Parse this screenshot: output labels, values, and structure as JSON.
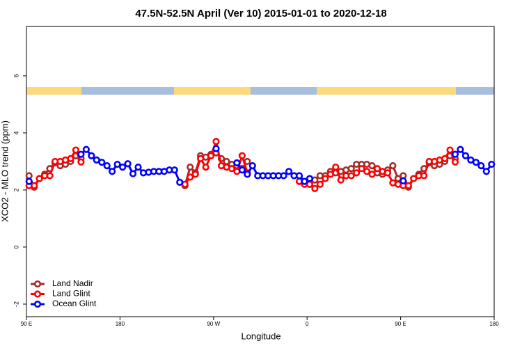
{
  "chart_data": {
    "type": "line",
    "title": "47.5N-52.5N April (Ver 10)   2015-01-01 to 2020-12-18",
    "x_label": "Longitude",
    "y_label": "XCO2 - MLO trend (ppm)",
    "xlim": [
      90,
      540
    ],
    "ylim": [
      -2.44,
      7.73
    ],
    "xticks": [
      {
        "value": 90,
        "label": "90 E"
      },
      {
        "value": 180,
        "label": "180"
      },
      {
        "value": 270,
        "label": "90 W"
      },
      {
        "value": 360,
        "label": "0"
      },
      {
        "value": 450,
        "label": "90 E"
      },
      {
        "value": 540,
        "label": "180"
      }
    ],
    "yticks": [
      -2,
      0,
      2,
      4,
      6
    ],
    "legend": "bottom-left",
    "x": [
      92.5,
      97.5,
      102.5,
      107.5,
      112.5,
      117.5,
      122.5,
      127.5,
      132.5,
      137.5,
      142.5,
      147.5,
      152.5,
      157.5,
      162.5,
      167.5,
      172.5,
      177.5,
      182.5,
      187.5,
      192.5,
      197.5,
      202.5,
      207.5,
      212.5,
      217.5,
      222.5,
      227.5,
      232.5,
      237.5,
      242.5,
      247.5,
      252.5,
      257.5,
      262.5,
      267.5,
      272.5,
      277.5,
      282.5,
      287.5,
      292.5,
      297.5,
      302.5,
      307.5,
      312.5,
      317.5,
      322.5,
      327.5,
      332.5,
      337.5,
      342.5,
      347.5,
      352.5,
      357.5,
      362.5,
      367.5,
      372.5,
      377.5,
      382.5,
      387.5,
      392.5,
      397.5,
      402.5,
      407.5,
      412.5,
      417.5,
      422.5,
      427.5,
      432.5,
      437.5,
      442.5,
      447.5,
      452.5,
      457.5,
      462.5,
      467.5,
      472.5,
      477.5,
      482.5,
      487.5,
      492.5,
      497.5,
      502.5,
      507.5,
      512.5,
      517.5,
      522.5,
      527.5,
      532.5,
      537.5
    ],
    "series": [
      {
        "name": "Land Nadir",
        "color": "#a52a2a",
        "values": [
          2.5,
          2.1,
          2.4,
          2.55,
          2.75,
          2.95,
          2.85,
          2.9,
          3.0,
          3.2,
          3.1,
          null,
          null,
          null,
          null,
          null,
          null,
          null,
          null,
          null,
          null,
          null,
          null,
          null,
          null,
          null,
          null,
          null,
          null,
          null,
          2.15,
          2.8,
          2.6,
          3.2,
          3.15,
          3.25,
          3.3,
          3.1,
          3.0,
          2.9,
          2.85,
          2.75,
          3.0,
          null,
          null,
          null,
          null,
          null,
          null,
          null,
          null,
          null,
          2.3,
          2.25,
          2.2,
          2.35,
          2.5,
          2.5,
          2.65,
          2.6,
          2.65,
          2.7,
          2.75,
          2.9,
          2.9,
          2.9,
          2.85,
          2.6,
          2.55,
          2.7,
          2.85,
          2.4,
          2.5,
          2.1,
          2.4,
          2.55,
          2.75,
          2.95,
          2.85,
          2.9,
          3.0,
          3.2,
          3.1,
          null,
          null,
          null,
          null,
          null,
          null,
          null
        ]
      },
      {
        "name": "Land Glint",
        "color": "#ff0000",
        "values": [
          2.15,
          2.15,
          2.4,
          2.5,
          2.5,
          3.0,
          3.0,
          3.05,
          3.1,
          3.4,
          2.98,
          null,
          null,
          null,
          null,
          null,
          null,
          null,
          null,
          null,
          null,
          null,
          null,
          null,
          null,
          null,
          null,
          null,
          null,
          null,
          2.2,
          2.45,
          2.55,
          3.1,
          2.8,
          3.2,
          3.7,
          2.85,
          2.8,
          2.75,
          2.65,
          3.2,
          2.6,
          null,
          null,
          null,
          null,
          null,
          null,
          null,
          null,
          null,
          2.3,
          2.2,
          2.2,
          2.05,
          2.2,
          2.4,
          2.55,
          2.8,
          2.35,
          2.5,
          2.5,
          2.6,
          2.75,
          2.65,
          2.55,
          2.75,
          2.65,
          2.6,
          2.25,
          2.2,
          2.15,
          2.15,
          2.4,
          2.5,
          2.5,
          3.0,
          3.0,
          3.05,
          3.1,
          3.4,
          2.98,
          null,
          null,
          null,
          null,
          null,
          null,
          null
        ]
      },
      {
        "name": "Ocean Glint",
        "color": "#0000ff",
        "values": [
          2.3,
          null,
          null,
          null,
          null,
          null,
          null,
          null,
          null,
          null,
          3.25,
          3.42,
          3.2,
          3.05,
          2.97,
          2.85,
          2.65,
          2.9,
          2.8,
          2.92,
          2.57,
          2.8,
          2.6,
          2.62,
          2.65,
          2.65,
          2.65,
          2.7,
          2.7,
          2.27,
          null,
          null,
          null,
          null,
          null,
          null,
          3.45,
          null,
          null,
          null,
          2.95,
          2.7,
          2.55,
          2.85,
          2.5,
          2.5,
          2.5,
          2.5,
          2.5,
          2.5,
          2.65,
          2.5,
          2.5,
          2.3,
          2.4,
          null,
          null,
          null,
          null,
          null,
          null,
          null,
          null,
          null,
          null,
          null,
          null,
          null,
          null,
          null,
          null,
          null,
          2.32,
          null,
          null,
          null,
          null,
          null,
          null,
          null,
          null,
          null,
          3.25,
          3.42,
          3.2,
          3.05,
          2.97,
          2.85,
          2.65,
          2.9
        ]
      }
    ]
  }
}
